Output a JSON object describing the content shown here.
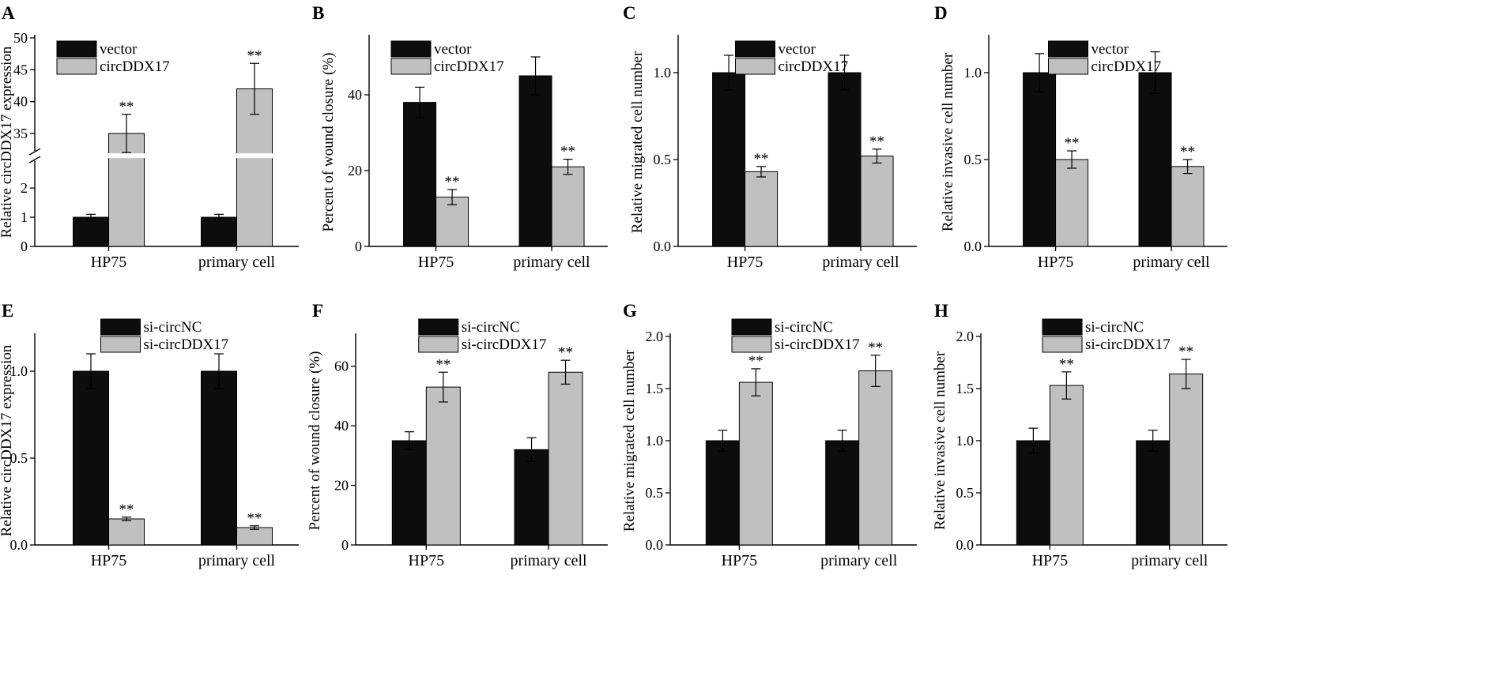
{
  "colors": {
    "series1": "#0d0d0d",
    "series2": "#c0c0c0",
    "axis": "#000000"
  },
  "chart_data": [
    {
      "id": "A",
      "letter": "A",
      "type": "bar",
      "ylabel": "Relative circDDX17 expression",
      "categories": [
        "HP75",
        "primary cell"
      ],
      "broken_axis": {
        "lower": [
          0,
          3
        ],
        "upper": [
          32,
          50
        ]
      },
      "ylim": [
        0,
        50
      ],
      "yticks": [
        0,
        1,
        2,
        35,
        40,
        45,
        50
      ],
      "series": [
        {
          "name": "vector",
          "values": [
            1.0,
            1.0
          ],
          "errors": [
            0.1,
            0.1
          ],
          "stars": [
            "",
            ""
          ]
        },
        {
          "name": "circDDX17",
          "values": [
            35,
            42
          ],
          "errors": [
            3,
            4
          ],
          "stars": [
            "**",
            "**"
          ]
        }
      ],
      "legend": "top-left"
    },
    {
      "id": "B",
      "letter": "B",
      "type": "bar",
      "ylabel": "Percent of wound closure (%)",
      "categories": [
        "HP75",
        "primary cell"
      ],
      "ylim": [
        0,
        55
      ],
      "yticks": [
        0,
        20,
        40
      ],
      "series": [
        {
          "name": "vector",
          "values": [
            38,
            45
          ],
          "errors": [
            4,
            5
          ],
          "stars": [
            "",
            ""
          ]
        },
        {
          "name": "circDDX17",
          "values": [
            13,
            21
          ],
          "errors": [
            2,
            2
          ],
          "stars": [
            "**",
            "**"
          ]
        }
      ],
      "legend": "top-left"
    },
    {
      "id": "C",
      "letter": "C",
      "type": "bar",
      "ylabel": "Relative migrated cell number",
      "categories": [
        "HP75",
        "primary cell"
      ],
      "ylim": [
        0,
        1.2
      ],
      "yticks": [
        0,
        0.5,
        1.0
      ],
      "series": [
        {
          "name": "vector",
          "values": [
            1.0,
            1.0
          ],
          "errors": [
            0.1,
            0.1
          ],
          "stars": [
            "",
            ""
          ]
        },
        {
          "name": "circDDX17",
          "values": [
            0.43,
            0.52
          ],
          "errors": [
            0.03,
            0.04
          ],
          "stars": [
            "**",
            "**"
          ]
        }
      ],
      "legend": "top-center"
    },
    {
      "id": "D",
      "letter": "D",
      "type": "bar",
      "ylabel": "Relative invasive cell number",
      "categories": [
        "HP75",
        "primary cell"
      ],
      "ylim": [
        0,
        1.2
      ],
      "yticks": [
        0,
        0.5,
        1.0
      ],
      "series": [
        {
          "name": "vector",
          "values": [
            1.0,
            1.0
          ],
          "errors": [
            0.11,
            0.12
          ],
          "stars": [
            "",
            ""
          ]
        },
        {
          "name": "circDDX17",
          "values": [
            0.5,
            0.46
          ],
          "errors": [
            0.05,
            0.04
          ],
          "stars": [
            "**",
            "**"
          ]
        }
      ],
      "legend": "top-center"
    },
    {
      "id": "E",
      "letter": "E",
      "type": "bar",
      "ylabel": "Relative circDDX17 expression",
      "categories": [
        "HP75",
        "primary cell"
      ],
      "ylim": [
        0,
        1.2
      ],
      "yticks": [
        0,
        0.5,
        1.0
      ],
      "series": [
        {
          "name": "si-circNC",
          "values": [
            1.0,
            1.0
          ],
          "errors": [
            0.1,
            0.1
          ],
          "stars": [
            "",
            ""
          ]
        },
        {
          "name": "si-circDDX17",
          "values": [
            0.15,
            0.1
          ],
          "errors": [
            0.01,
            0.01
          ],
          "stars": [
            "**",
            "**"
          ]
        }
      ],
      "legend": "top-center"
    },
    {
      "id": "F",
      "letter": "F",
      "type": "bar",
      "ylabel": "Percent of wound closure (%)",
      "categories": [
        "HP75",
        "primary cell"
      ],
      "ylim": [
        0,
        70
      ],
      "yticks": [
        0,
        20,
        40,
        60
      ],
      "series": [
        {
          "name": "si-circNC",
          "values": [
            35,
            32
          ],
          "errors": [
            3,
            4
          ],
          "stars": [
            "",
            ""
          ]
        },
        {
          "name": "si-circDDX17",
          "values": [
            53,
            58
          ],
          "errors": [
            5,
            4
          ],
          "stars": [
            "**",
            "**"
          ]
        }
      ],
      "legend": "top-center"
    },
    {
      "id": "G",
      "letter": "G",
      "type": "bar",
      "ylabel": "Relative migrated cell number",
      "categories": [
        "HP75",
        "primary cell"
      ],
      "ylim": [
        0,
        2.0
      ],
      "yticks": [
        0,
        0.5,
        1.0,
        1.5,
        2.0
      ],
      "series": [
        {
          "name": "si-circNC",
          "values": [
            1.0,
            1.0
          ],
          "errors": [
            0.1,
            0.1
          ],
          "stars": [
            "",
            ""
          ]
        },
        {
          "name": "si-circDDX17",
          "values": [
            1.56,
            1.67
          ],
          "errors": [
            0.13,
            0.15
          ],
          "stars": [
            "**",
            "**"
          ]
        }
      ],
      "legend": "top-center"
    },
    {
      "id": "H",
      "letter": "H",
      "type": "bar",
      "ylabel": "Relative invasive cell number",
      "categories": [
        "HP75",
        "primary cell"
      ],
      "ylim": [
        0,
        2.0
      ],
      "yticks": [
        0,
        0.5,
        1.0,
        1.5,
        2.0
      ],
      "series": [
        {
          "name": "si-circNC",
          "values": [
            1.0,
            1.0
          ],
          "errors": [
            0.12,
            0.1
          ],
          "stars": [
            "",
            ""
          ]
        },
        {
          "name": "si-circDDX17",
          "values": [
            1.53,
            1.64
          ],
          "errors": [
            0.13,
            0.14
          ],
          "stars": [
            "**",
            "**"
          ]
        }
      ],
      "legend": "top-center"
    }
  ]
}
